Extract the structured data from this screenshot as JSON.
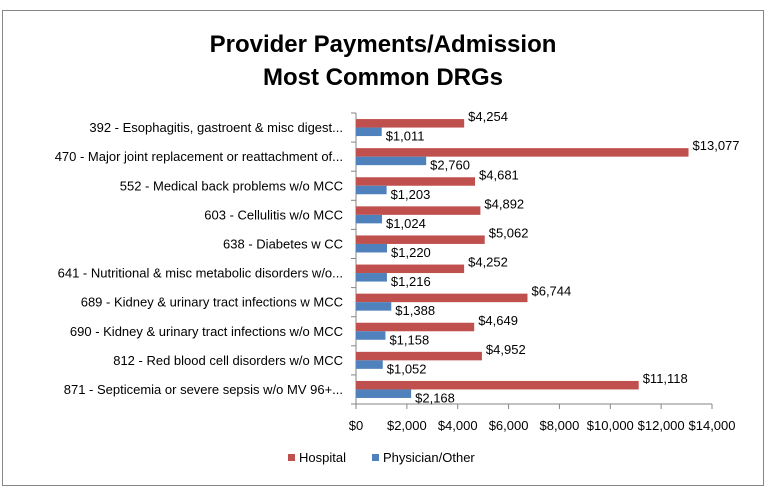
{
  "chart_data": {
    "type": "bar",
    "orientation": "horizontal",
    "title": [
      "Provider Payments/Admission",
      "Most Common DRGs"
    ],
    "categories": [
      "392 - Esophagitis, gastroent & misc digest...",
      "470 - Major joint replacement or reattachment of...",
      "552 - Medical back problems w/o MCC",
      "603 - Cellulitis w/o MCC",
      "638 - Diabetes w CC",
      "641 - Nutritional & misc metabolic disorders w/o...",
      "689 - Kidney & urinary tract infections w MCC",
      "690 - Kidney & urinary tract infections w/o MCC",
      "812 - Red blood cell disorders w/o MCC",
      "871 - Septicemia or severe sepsis w/o MV 96+..."
    ],
    "series": [
      {
        "name": "Hospital",
        "color": "#C0504D",
        "values": [
          4254,
          13077,
          4681,
          4892,
          5062,
          4252,
          6744,
          4649,
          4952,
          11118
        ],
        "labels": [
          "$4,254",
          "$13,077",
          "$4,681",
          "$4,892",
          "$5,062",
          "$4,252",
          "$6,744",
          "$4,649",
          "$4,952",
          "$11,118"
        ]
      },
      {
        "name": "Physician/Other",
        "color": "#4F81BD",
        "values": [
          1011,
          2760,
          1203,
          1024,
          1220,
          1216,
          1388,
          1158,
          1052,
          2168
        ],
        "labels": [
          "$1,011",
          "$2,760",
          "$1,203",
          "$1,024",
          "$1,220",
          "$1,216",
          "$1,388",
          "$1,158",
          "$1,052",
          "$2,168"
        ]
      }
    ],
    "xlim": [
      0,
      14000
    ],
    "xticks": [
      0,
      2000,
      4000,
      6000,
      8000,
      10000,
      12000,
      14000
    ],
    "xtick_labels": [
      "$0",
      "$2,000",
      "$4,000",
      "$6,000",
      "$8,000",
      "$10,000",
      "$12,000",
      "$14,000"
    ],
    "grid": false,
    "legend_position": "bottom"
  }
}
